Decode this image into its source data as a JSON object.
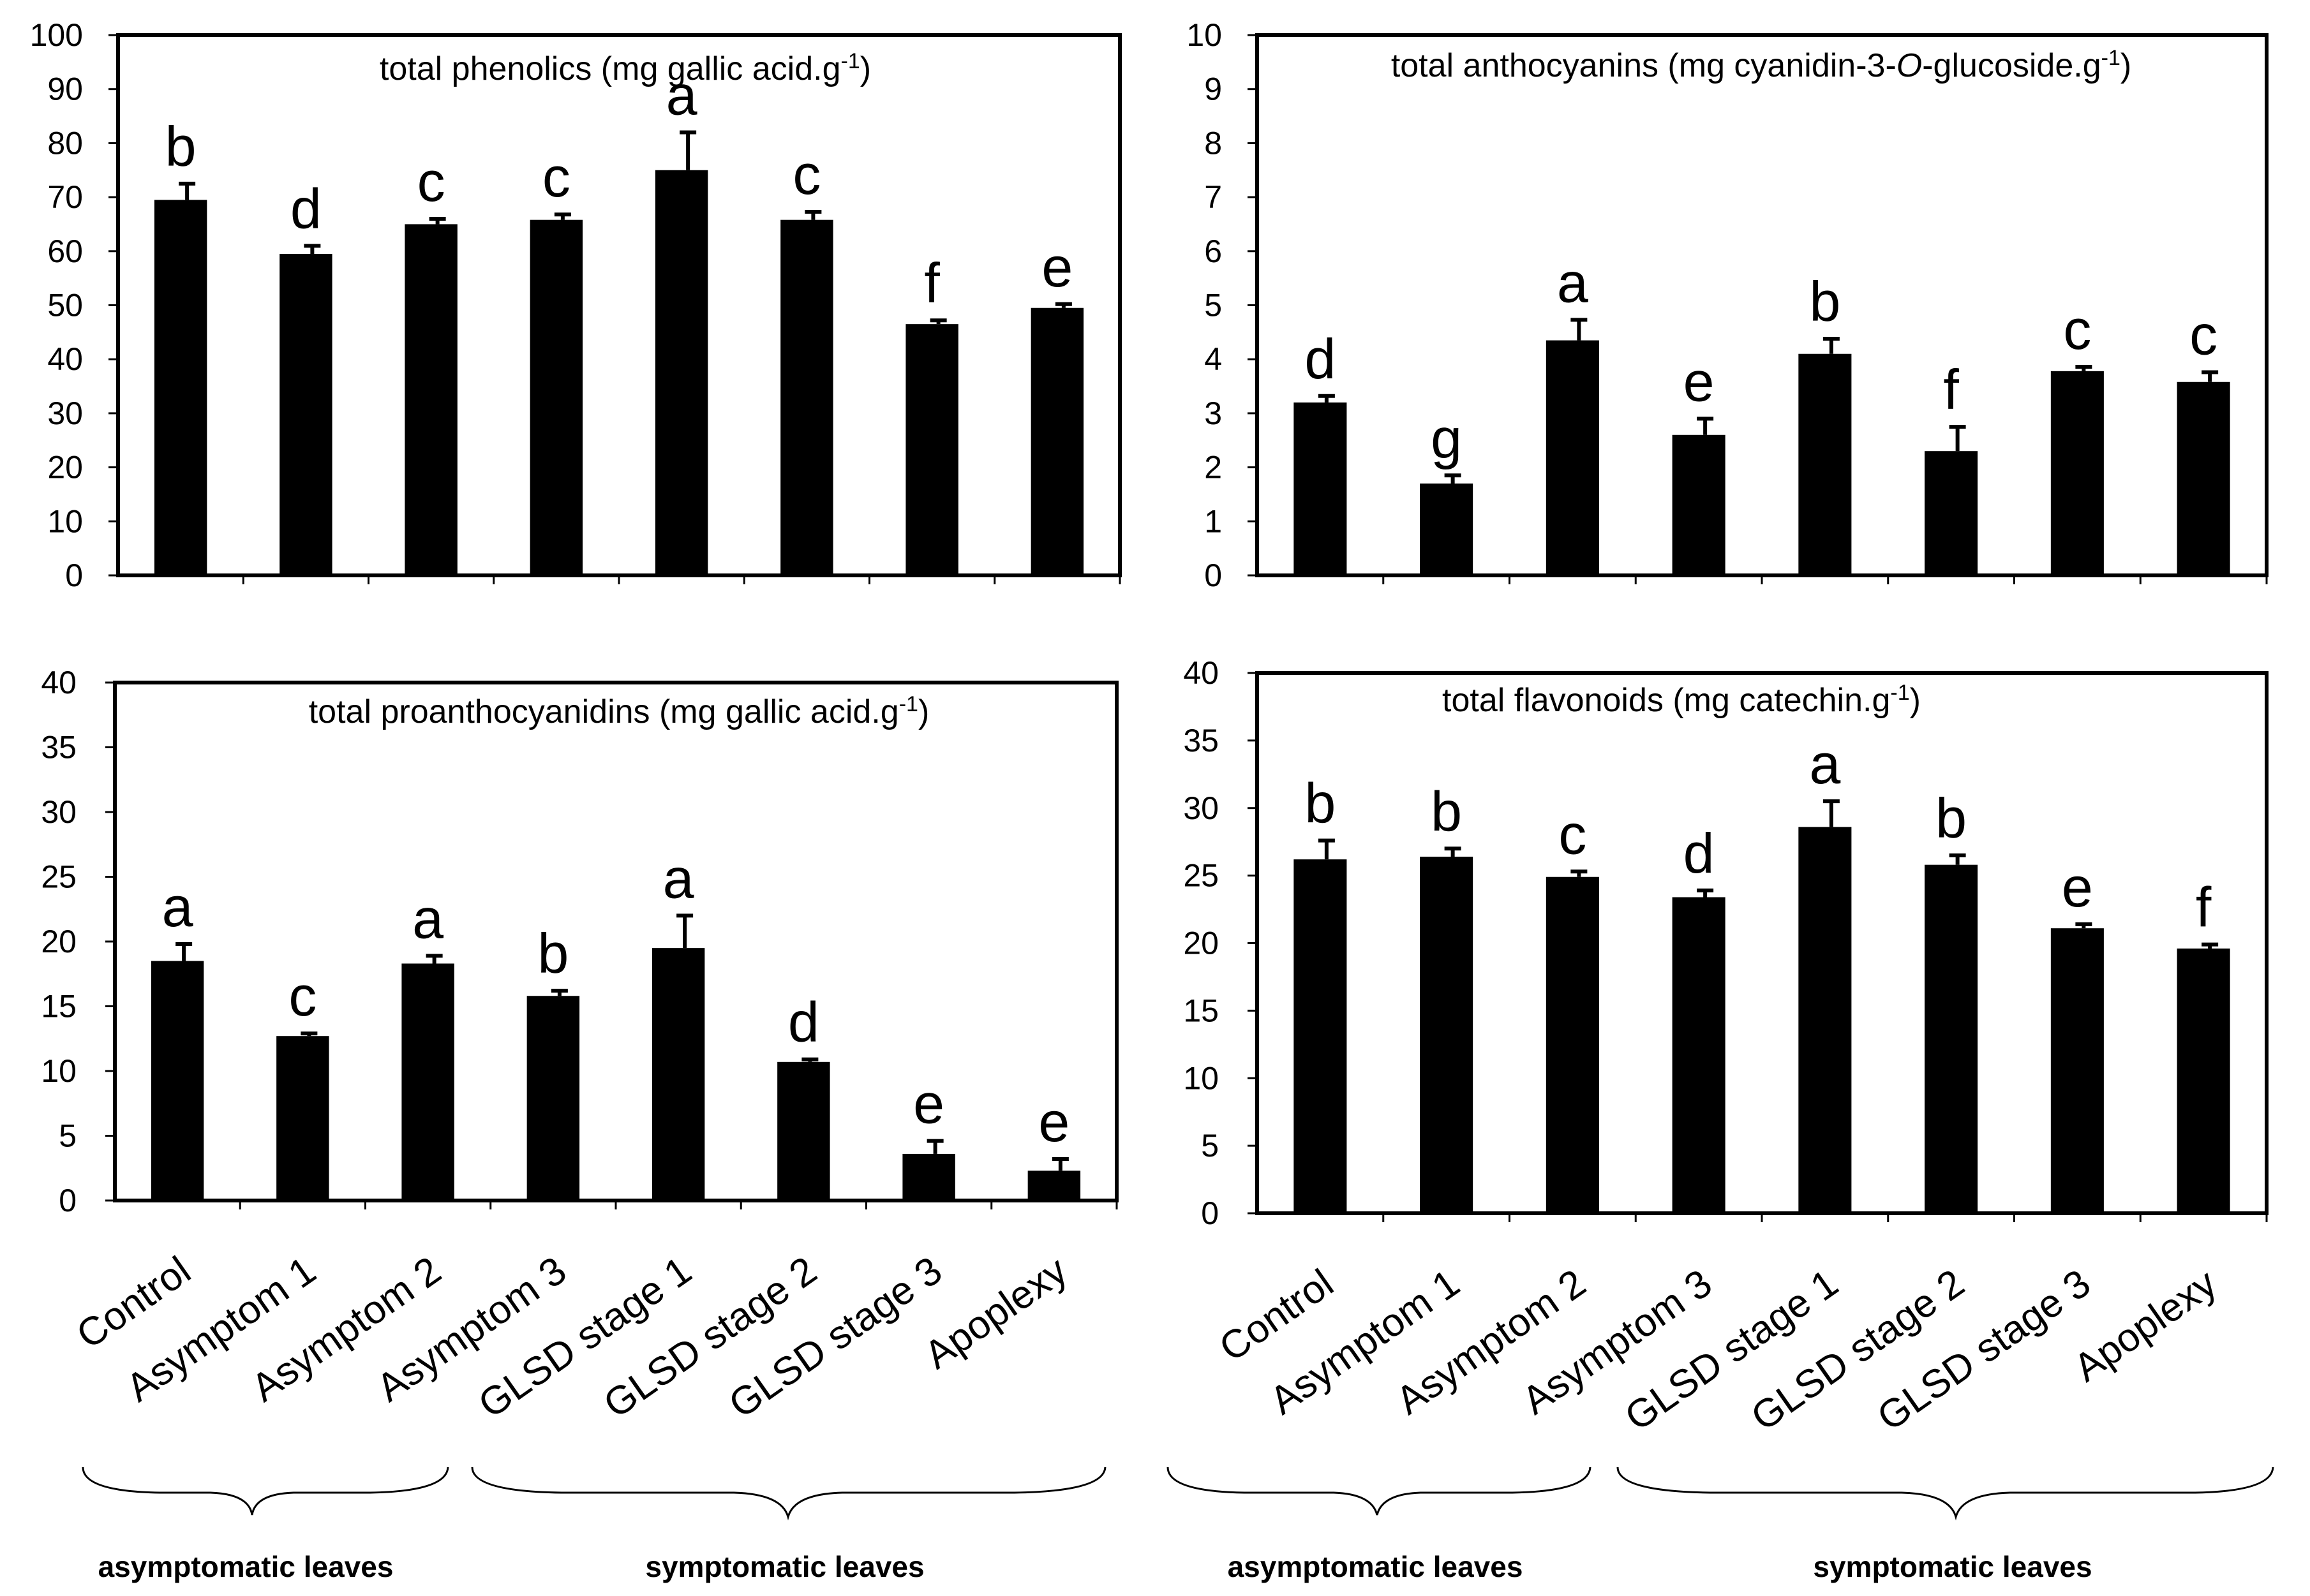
{
  "figure": {
    "bar_color": "#000000",
    "background": "#ffffff",
    "group_labels": {
      "asymptomatic": "asymptomatic leaves",
      "symptomatic": "symptomatic leaves"
    }
  },
  "chart_data": [
    {
      "type": "bar",
      "panel": "top-left",
      "title_prefix": "total phenolics (mg gallic acid.g",
      "title_superscript": "-1",
      "title_suffix": ")",
      "categories": [
        "Control",
        "Asymptom 1",
        "Asymptom 2",
        "Asymptom 3",
        "GLSD stage 1",
        "GLSD stage 2",
        "GLSD stage 3",
        "Apoplexy"
      ],
      "values": [
        69.5,
        59.5,
        65.0,
        65.8,
        75.0,
        65.8,
        46.5,
        49.5
      ],
      "errors": [
        3.0,
        1.5,
        1.0,
        1.0,
        7.0,
        1.5,
        0.7,
        0.7
      ],
      "significance": [
        "b",
        "d",
        "c",
        "c",
        "a",
        "c",
        "f",
        "e"
      ],
      "ylim": [
        0,
        100
      ],
      "yticks": [
        0,
        10,
        20,
        30,
        40,
        50,
        60,
        70,
        80,
        90,
        100
      ],
      "show_category_labels": false
    },
    {
      "type": "bar",
      "panel": "top-right",
      "title_prefix": "total anthocyanins (mg cyanidin-3-",
      "title_italic": "O",
      "title_middle": "-glucoside.g",
      "title_superscript": "-1",
      "title_suffix": ")",
      "categories": [
        "Control",
        "Asymptom 1",
        "Asymptom 2",
        "Asymptom 3",
        "GLSD stage 1",
        "GLSD stage 2",
        "GLSD stage 3",
        "Apoplexy"
      ],
      "values": [
        3.2,
        1.7,
        4.35,
        2.6,
        4.1,
        2.3,
        3.78,
        3.58
      ],
      "errors": [
        0.12,
        0.15,
        0.38,
        0.3,
        0.28,
        0.45,
        0.08,
        0.18
      ],
      "significance": [
        "d",
        "g",
        "a",
        "e",
        "b",
        "f",
        "c",
        "c"
      ],
      "ylim": [
        0,
        10
      ],
      "yticks": [
        0,
        1,
        2,
        3,
        4,
        5,
        6,
        7,
        8,
        9,
        10
      ],
      "show_category_labels": false
    },
    {
      "type": "bar",
      "panel": "bottom-left",
      "title_prefix": "total proanthocyanidins (mg gallic acid.g",
      "title_superscript": "-1",
      "title_suffix": ")",
      "categories": [
        "Control",
        "Asymptom 1",
        "Asymptom 2",
        "Asymptom 3",
        "GLSD stage 1",
        "GLSD stage 2",
        "GLSD stage 3",
        "Apoplexy"
      ],
      "values": [
        18.5,
        12.7,
        18.3,
        15.8,
        19.5,
        10.7,
        3.6,
        2.3
      ],
      "errors": [
        1.3,
        0.2,
        0.6,
        0.4,
        2.5,
        0.2,
        1.0,
        0.9
      ],
      "significance": [
        "a",
        "c",
        "a",
        "b",
        "a",
        "d",
        "e",
        "e"
      ],
      "ylim": [
        0,
        40
      ],
      "yticks": [
        0,
        5,
        10,
        15,
        20,
        25,
        30,
        35,
        40
      ],
      "show_category_labels": true
    },
    {
      "type": "bar",
      "panel": "bottom-right",
      "title_prefix": "total flavonoids (mg catechin.g",
      "title_superscript": "-1",
      "title_suffix": ")",
      "categories": [
        "Control",
        "Asymptom 1",
        "Asymptom 2",
        "Asymptom 3",
        "GLSD stage 1",
        "GLSD stage 2",
        "GLSD stage 3",
        "Apoplexy"
      ],
      "values": [
        26.2,
        26.4,
        24.9,
        23.4,
        28.6,
        25.8,
        21.1,
        19.6
      ],
      "errors": [
        1.4,
        0.6,
        0.4,
        0.5,
        1.9,
        0.7,
        0.3,
        0.3
      ],
      "significance": [
        "b",
        "b",
        "c",
        "d",
        "a",
        "b",
        "e",
        "f"
      ],
      "ylim": [
        0,
        40
      ],
      "yticks": [
        0,
        5,
        10,
        15,
        20,
        25,
        30,
        35,
        40
      ],
      "show_category_labels": true
    }
  ]
}
